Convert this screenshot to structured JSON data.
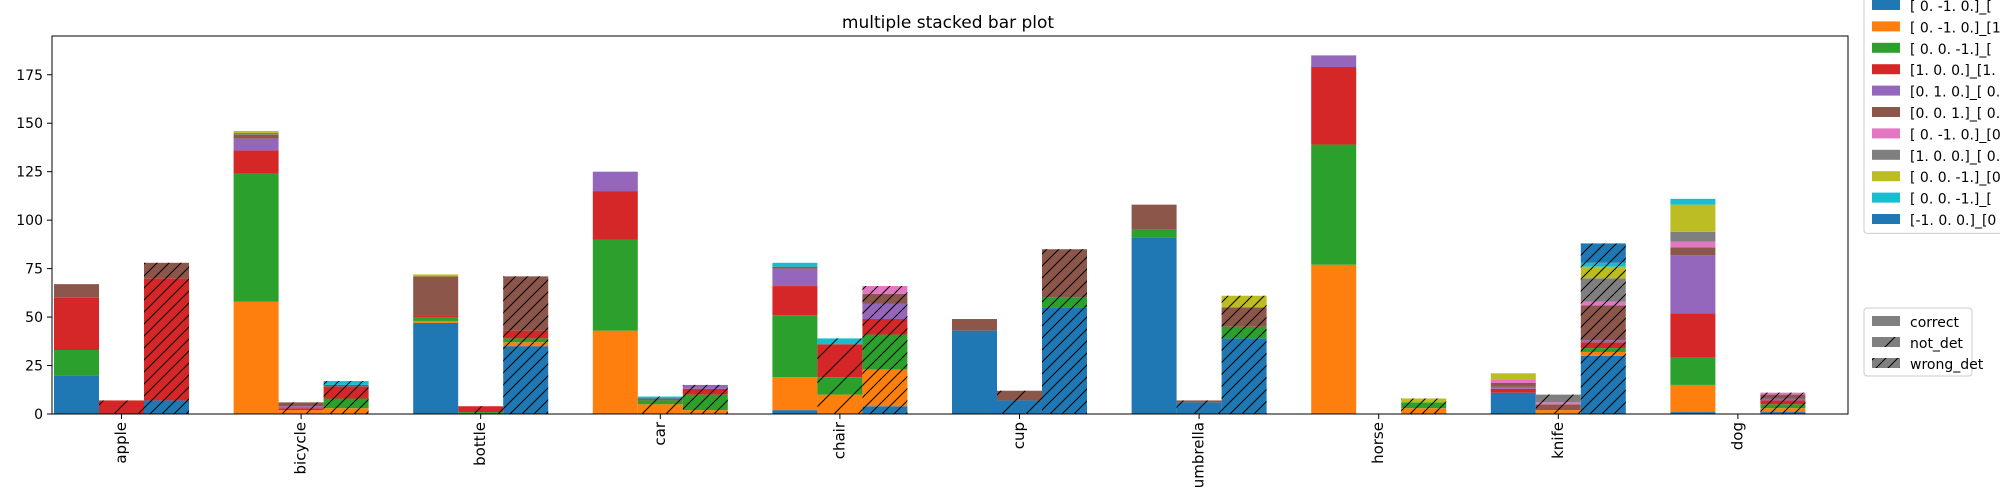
{
  "chart_data": {
    "type": "bar",
    "title": "multiple stacked bar plot",
    "xlabel": "",
    "ylabel": "",
    "ylim": [
      0,
      195
    ],
    "yticks": [
      0,
      25,
      50,
      75,
      100,
      125,
      150,
      175
    ],
    "categories": [
      "apple",
      "bicycle",
      "bottle",
      "car",
      "chair",
      "cup",
      "umbrella",
      "horse",
      "knife",
      "dog"
    ],
    "groups": [
      "correct",
      "not_det",
      "wrong_det"
    ],
    "series": [
      {
        "name": "[ 0. -1.  0.]_[",
        "color": "#1f77b4",
        "correct": [
          20,
          0,
          47,
          0,
          2,
          43,
          91,
          0,
          11,
          1
        ],
        "not_det": [
          0,
          0,
          0,
          0,
          0,
          7,
          6,
          0,
          0,
          0
        ],
        "wrong_det": [
          7,
          0,
          35,
          0,
          4,
          55,
          39,
          0,
          30,
          1
        ]
      },
      {
        "name": "[ 0. -1.  0.]_[1",
        "color": "#ff7f0e",
        "correct": [
          0,
          58,
          1,
          43,
          17,
          0,
          0,
          77,
          0,
          14
        ],
        "not_det": [
          0,
          2,
          0,
          5,
          10,
          0,
          0,
          0,
          2,
          0
        ],
        "wrong_det": [
          0,
          3,
          2,
          2,
          19,
          0,
          0,
          3,
          2,
          2
        ]
      },
      {
        "name": "[ 0.  0. -1.]_[",
        "color": "#2ca02c",
        "correct": [
          13,
          66,
          2,
          47,
          32,
          0,
          4,
          62,
          0,
          14
        ],
        "not_det": [
          0,
          0,
          1,
          2,
          9,
          0,
          0,
          0,
          0,
          0
        ],
        "wrong_det": [
          0,
          5,
          2,
          8,
          18,
          5,
          6,
          3,
          2,
          2
        ]
      },
      {
        "name": "[1. 0. 0.]_[1.",
        "color": "#d62728",
        "correct": [
          27,
          12,
          1,
          25,
          15,
          0,
          0,
          40,
          2,
          23
        ],
        "not_det": [
          7,
          1,
          3,
          0,
          17,
          0,
          0,
          0,
          0,
          0
        ],
        "wrong_det": [
          63,
          6,
          4,
          3,
          8,
          0,
          0,
          0,
          3,
          2
        ]
      },
      {
        "name": "[0. 1. 0.]_[ 0.",
        "color": "#9467bd",
        "correct": [
          0,
          6,
          0,
          10,
          9,
          0,
          0,
          6,
          1,
          30
        ],
        "not_det": [
          0,
          1,
          0,
          0,
          0,
          0,
          0,
          0,
          0,
          0
        ],
        "wrong_det": [
          0,
          0,
          0,
          2,
          8,
          0,
          0,
          0,
          1,
          1
        ]
      },
      {
        "name": "[0. 0. 1.]_[ 0.",
        "color": "#8c564b",
        "correct": [
          7,
          2,
          20,
          0,
          1,
          6,
          13,
          0,
          2,
          4
        ],
        "not_det": [
          0,
          2,
          0,
          1,
          0,
          5,
          1,
          0,
          3,
          0
        ],
        "wrong_det": [
          8,
          1,
          28,
          0,
          5,
          25,
          10,
          0,
          18,
          2
        ]
      },
      {
        "name": "[ 0. -1.  0.]_[0",
        "color": "#e377c2",
        "correct": [
          0,
          0,
          0,
          0,
          0,
          0,
          0,
          0,
          2,
          3
        ],
        "not_det": [
          0,
          0,
          0,
          0,
          0,
          0,
          0,
          0,
          1,
          0
        ],
        "wrong_det": [
          0,
          0,
          0,
          0,
          4,
          0,
          0,
          0,
          2,
          1
        ]
      },
      {
        "name": "[1. 0. 0.]_[ 0.",
        "color": "#7f7f7f",
        "correct": [
          0,
          1,
          0,
          0,
          0,
          0,
          0,
          0,
          0,
          5
        ],
        "not_det": [
          0,
          0,
          0,
          0,
          0,
          0,
          0,
          0,
          4,
          0
        ],
        "wrong_det": [
          0,
          0,
          0,
          0,
          0,
          0,
          0,
          0,
          12,
          0
        ]
      },
      {
        "name": "[ 0.  0. -1.]_[0",
        "color": "#bcbd22",
        "correct": [
          0,
          1,
          1,
          0,
          0,
          0,
          0,
          0,
          3,
          14
        ],
        "not_det": [
          0,
          0,
          0,
          0,
          0,
          0,
          0,
          0,
          0,
          0
        ],
        "wrong_det": [
          0,
          0,
          0,
          0,
          0,
          0,
          6,
          2,
          6,
          0
        ]
      },
      {
        "name": "[ 0.  0. -1.]_[",
        "color": "#17becf",
        "correct": [
          0,
          0,
          0,
          0,
          2,
          0,
          0,
          0,
          0,
          3
        ],
        "not_det": [
          0,
          0,
          0,
          1,
          3,
          0,
          0,
          0,
          0,
          0
        ],
        "wrong_det": [
          0,
          2,
          0,
          0,
          0,
          0,
          0,
          0,
          2,
          0
        ]
      },
      {
        "name": "[-1.  0.  0.]_[0",
        "color": "#1f77b4",
        "correct": [
          0,
          0,
          0,
          0,
          0,
          0,
          0,
          0,
          0,
          0
        ],
        "not_det": [
          0,
          0,
          0,
          0,
          0,
          0,
          0,
          0,
          0,
          0
        ],
        "wrong_det": [
          0,
          0,
          0,
          0,
          0,
          0,
          0,
          0,
          10,
          0
        ]
      }
    ],
    "legend_placement": "right",
    "grid": false
  }
}
